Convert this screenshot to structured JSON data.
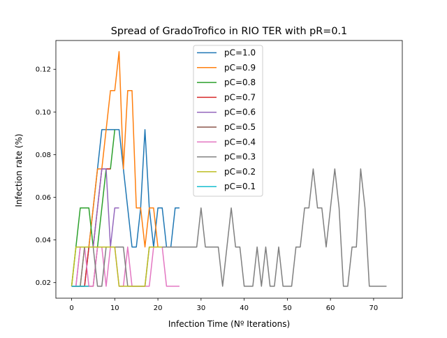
{
  "chart_data": {
    "type": "line",
    "title": "Spread of GradoTrofico in RIO TER with pR=0.1",
    "xlabel": "Infection Time (Nº Iterations)",
    "ylabel": "Infection rate (%)",
    "xlim": [
      -3.65,
      76.65
    ],
    "ylim": [
      0.0127,
      0.1335
    ],
    "xticks": [
      0,
      10,
      20,
      30,
      40,
      50,
      60,
      70
    ],
    "yticks": [
      0.02,
      0.04,
      0.06,
      0.08,
      0.1,
      0.12
    ],
    "ytick_labels": [
      "0.02",
      "0.04",
      "0.06",
      "0.08",
      "0.10",
      "0.12"
    ],
    "grid": false,
    "legend_position": "upper center",
    "series": [
      {
        "name": "pC=1.0",
        "color": "#1f77b4",
        "x": [
          0,
          1,
          2,
          3,
          4,
          5,
          6,
          7,
          8,
          9,
          10,
          11,
          12,
          13,
          14,
          15,
          16,
          17,
          18,
          19,
          20,
          21,
          22,
          23,
          24,
          25
        ],
        "y": [
          0.0183,
          0.0183,
          0.0183,
          0.0183,
          0.0367,
          0.055,
          0.0733,
          0.0917,
          0.0917,
          0.0917,
          0.0917,
          0.0917,
          0.0733,
          0.055,
          0.0367,
          0.0367,
          0.055,
          0.0917,
          0.055,
          0.0367,
          0.055,
          0.055,
          0.0367,
          0.0367,
          0.055,
          0.055
        ]
      },
      {
        "name": "pC=0.9",
        "color": "#ff7f0e",
        "x": [
          0,
          1,
          2,
          3,
          4,
          5,
          6,
          7,
          8,
          9,
          10,
          11,
          12,
          13,
          14,
          15,
          16,
          17,
          18,
          19,
          20
        ],
        "y": [
          0.0183,
          0.0183,
          0.0183,
          0.0367,
          0.0367,
          0.055,
          0.0733,
          0.0733,
          0.0917,
          0.11,
          0.11,
          0.1283,
          0.0733,
          0.11,
          0.11,
          0.055,
          0.055,
          0.0367,
          0.055,
          0.055,
          0.0367
        ]
      },
      {
        "name": "pC=0.8",
        "color": "#2ca02c",
        "x": [
          0,
          1,
          2,
          3,
          4,
          5,
          6,
          7,
          8,
          9,
          10
        ],
        "y": [
          0.0183,
          0.0367,
          0.055,
          0.055,
          0.055,
          0.0367,
          0.0367,
          0.055,
          0.0733,
          0.0733,
          0.0917
        ]
      },
      {
        "name": "pC=0.7",
        "color": "#d62728",
        "x": [
          0,
          1,
          2,
          3,
          4,
          5,
          6,
          7,
          8,
          9
        ],
        "y": [
          0.0183,
          0.0183,
          0.0183,
          0.0183,
          0.0367,
          0.0367,
          0.055,
          0.0733,
          0.0733,
          0.0733
        ]
      },
      {
        "name": "pC=0.6",
        "color": "#9467bd",
        "x": [
          0,
          1,
          2,
          3,
          4,
          5,
          6,
          7,
          8,
          9,
          10,
          11
        ],
        "y": [
          0.0183,
          0.0183,
          0.0367,
          0.0367,
          0.0367,
          0.0367,
          0.055,
          0.0733,
          0.0733,
          0.0367,
          0.055,
          0.055
        ]
      },
      {
        "name": "pC=0.5",
        "color": "#8c564b",
        "x": [
          0,
          1,
          2,
          3,
          4,
          5,
          6
        ],
        "y": [
          0.0183,
          0.0183,
          0.0183,
          0.0183,
          0.0183,
          0.0183,
          0.0367
        ]
      },
      {
        "name": "pC=0.4",
        "color": "#e377c2",
        "x": [
          0,
          1,
          2,
          3,
          4,
          5,
          6,
          7,
          8,
          9,
          10,
          11,
          12,
          13,
          14,
          15,
          16,
          17,
          18,
          19,
          20,
          21,
          22,
          23,
          24,
          25
        ],
        "y": [
          0.0183,
          0.0183,
          0.0367,
          0.0367,
          0.0183,
          0.0183,
          0.0367,
          0.0367,
          0.0183,
          0.0367,
          0.0367,
          0.0183,
          0.0183,
          0.0367,
          0.0183,
          0.0183,
          0.0183,
          0.0183,
          0.0183,
          0.0367,
          0.0367,
          0.0367,
          0.0183,
          0.0183,
          0.0183,
          0.0183
        ]
      },
      {
        "name": "pC=0.3",
        "color": "#7f7f7f",
        "x": [
          0,
          1,
          2,
          3,
          4,
          5,
          6,
          7,
          8,
          9,
          10,
          11,
          12,
          13,
          14,
          15,
          16,
          17,
          18,
          19,
          20,
          21,
          22,
          23,
          24,
          25,
          26,
          27,
          28,
          29,
          30,
          31,
          32,
          33,
          34,
          35,
          36,
          37,
          38,
          39,
          40,
          41,
          42,
          43,
          44,
          45,
          46,
          47,
          48,
          49,
          50,
          51,
          52,
          53,
          54,
          55,
          56,
          57,
          58,
          59,
          60,
          61,
          62,
          63,
          64,
          65,
          66,
          67,
          68,
          69,
          70,
          71,
          72,
          73
        ],
        "y": [
          0.0183,
          0.0183,
          0.0183,
          0.0367,
          0.0367,
          0.0367,
          0.0183,
          0.0183,
          0.0367,
          0.0367,
          0.0367,
          0.0367,
          0.0367,
          0.0183,
          0.0183,
          0.0183,
          0.0183,
          0.0183,
          0.0367,
          0.0367,
          0.0367,
          0.0367,
          0.0367,
          0.0367,
          0.0367,
          0.0367,
          0.0367,
          0.0367,
          0.0367,
          0.0367,
          0.055,
          0.0367,
          0.0367,
          0.0367,
          0.0367,
          0.0183,
          0.0367,
          0.055,
          0.0367,
          0.0367,
          0.0183,
          0.0183,
          0.0183,
          0.0367,
          0.0183,
          0.0367,
          0.0183,
          0.0183,
          0.0367,
          0.0183,
          0.0183,
          0.0183,
          0.0367,
          0.0367,
          0.055,
          0.055,
          0.0733,
          0.055,
          0.055,
          0.0367,
          0.055,
          0.0733,
          0.055,
          0.0183,
          0.0183,
          0.0367,
          0.0367,
          0.0733,
          0.055,
          0.0183,
          0.0183,
          0.0183,
          0.0183,
          0.0183
        ]
      },
      {
        "name": "pC=0.2",
        "color": "#bcbd22",
        "x": [
          0,
          1,
          2,
          3,
          4,
          5,
          6,
          7,
          8,
          9,
          10,
          11,
          12,
          13,
          14,
          15,
          16,
          17,
          18,
          19,
          20,
          21
        ],
        "y": [
          0.0183,
          0.0367,
          0.0367,
          0.0367,
          0.0367,
          0.0367,
          0.0367,
          0.0367,
          0.0367,
          0.0367,
          0.0367,
          0.0183,
          0.0183,
          0.0183,
          0.0183,
          0.0183,
          0.0183,
          0.0183,
          0.0367,
          0.0367,
          0.0367,
          0.0367
        ]
      },
      {
        "name": "pC=0.1",
        "color": "#17becf",
        "x": [
          0,
          1,
          2,
          3,
          4
        ],
        "y": [
          0.0183,
          0.0183,
          0.0183,
          0.0183,
          0.0183
        ]
      }
    ]
  }
}
